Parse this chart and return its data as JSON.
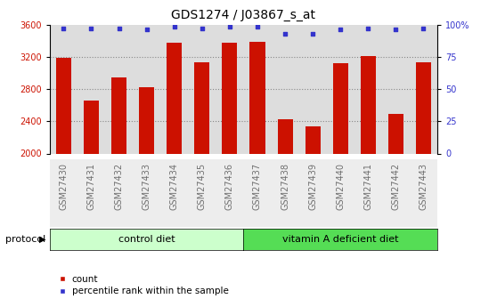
{
  "title": "GDS1274 / J03867_s_at",
  "samples": [
    "GSM27430",
    "GSM27431",
    "GSM27432",
    "GSM27433",
    "GSM27434",
    "GSM27435",
    "GSM27436",
    "GSM27437",
    "GSM27438",
    "GSM27439",
    "GSM27440",
    "GSM27441",
    "GSM27442",
    "GSM27443"
  ],
  "counts": [
    3190,
    2660,
    2940,
    2820,
    3380,
    3130,
    3370,
    3390,
    2430,
    2340,
    3120,
    3210,
    2490,
    3130
  ],
  "percentiles": [
    97,
    97,
    97,
    96,
    98,
    97,
    98,
    98,
    93,
    93,
    96,
    97,
    96,
    97
  ],
  "ylim_left": [
    2000,
    3600
  ],
  "ylim_right": [
    0,
    100
  ],
  "yticks_left": [
    2000,
    2400,
    2800,
    3200,
    3600
  ],
  "yticks_right": [
    0,
    25,
    50,
    75,
    100
  ],
  "bar_color": "#cc1100",
  "dot_color": "#3333cc",
  "n_control": 7,
  "n_treatment": 7,
  "control_label": "control diet",
  "treatment_label": "vitamin A deficient diet",
  "protocol_label": "protocol",
  "legend_count": "count",
  "legend_percentile": "percentile rank within the sample",
  "plot_bg": "#ffffff",
  "col_bg": "#dddddd",
  "control_bg": "#ccffcc",
  "treatment_bg": "#55dd55",
  "grid_color": "#888888",
  "title_fontsize": 10,
  "tick_fontsize": 7,
  "label_fontsize": 8
}
